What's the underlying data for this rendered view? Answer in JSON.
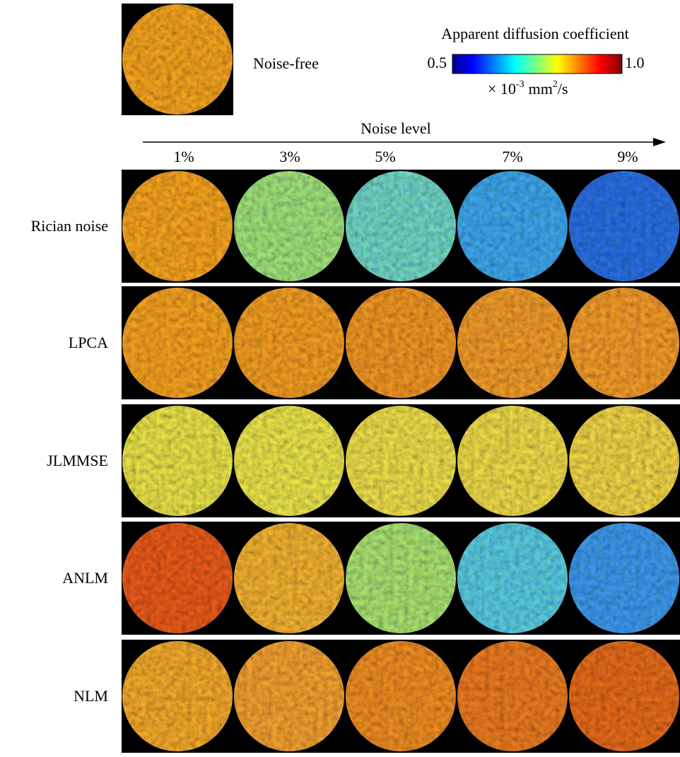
{
  "reference": {
    "label": "Noise-free"
  },
  "colorbar": {
    "title": "Apparent diffusion coefficient",
    "min": "0.5",
    "max": "1.0",
    "unit": {
      "prefix": "× 10",
      "exponent": "-3",
      "base": "mm",
      "power": "2",
      "suffix": "/s"
    }
  },
  "axis": {
    "label": "Noise level",
    "columns": [
      "1%",
      "3%",
      "5%",
      "7%",
      "9%"
    ]
  },
  "rows": [
    "Rician noise",
    "LPCA",
    "JLMMSE",
    "ANLM",
    "NLM"
  ]
}
